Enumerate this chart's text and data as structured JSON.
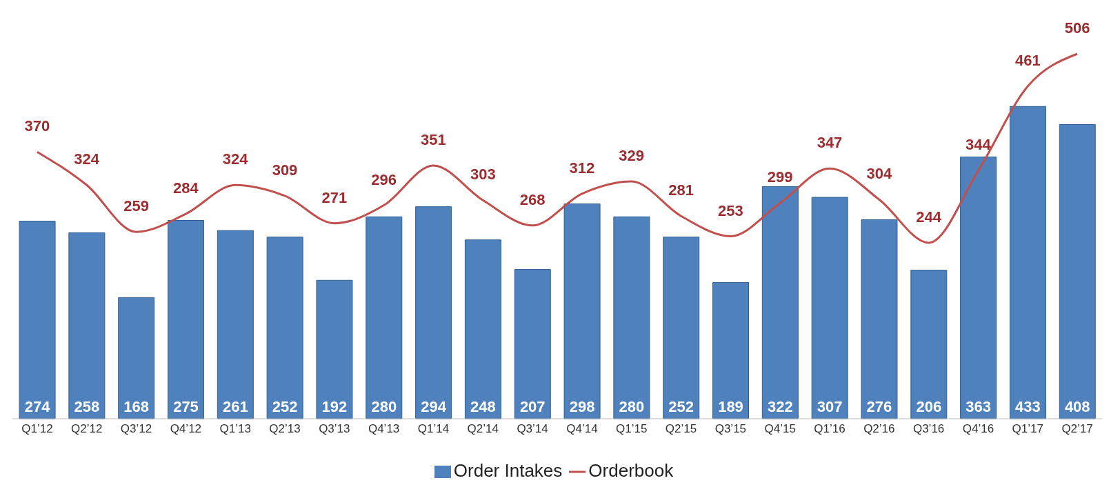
{
  "chart_data": {
    "type": "bar",
    "categories": [
      "Q1’12",
      "Q2’12",
      "Q3’12",
      "Q4’12",
      "Q1’13",
      "Q2’13",
      "Q3’13",
      "Q4’13",
      "Q1’14",
      "Q2’14",
      "Q3’14",
      "Q4’14",
      "Q1’15",
      "Q2’15",
      "Q3’15",
      "Q4’15",
      "Q1’16",
      "Q2’16",
      "Q3’16",
      "Q4’16",
      "Q1’17",
      "Q2’17"
    ],
    "series": [
      {
        "name": "Order Intakes",
        "color": "#4f81bd",
        "values": [
          274,
          258,
          168,
          275,
          261,
          252,
          192,
          280,
          294,
          248,
          207,
          298,
          280,
          252,
          189,
          322,
          307,
          276,
          206,
          363,
          433,
          408
        ]
      },
      {
        "name": "Orderbook",
        "type": "line",
        "color": "#c0504d",
        "values": [
          370,
          324,
          259,
          284,
          324,
          309,
          271,
          296,
          351,
          303,
          268,
          312,
          329,
          281,
          253,
          299,
          347,
          304,
          244,
          344,
          461,
          506
        ]
      }
    ],
    "data_labels": true,
    "legend": "bottom",
    "grid": false,
    "marker": "none"
  }
}
